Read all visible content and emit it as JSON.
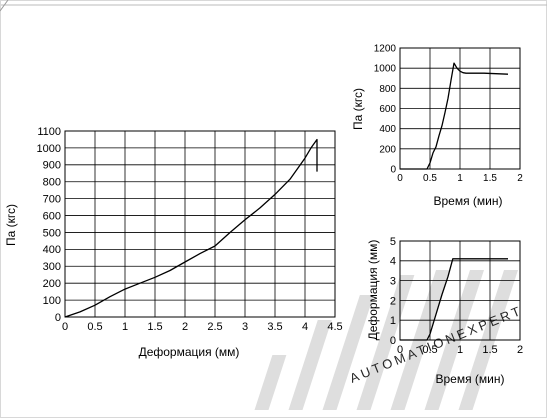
{
  "chart_data": [
    {
      "type": "line",
      "xlabel": "Деформация (мм)",
      "ylabel": "Па (кгс)",
      "xlim": [
        0,
        4.5
      ],
      "ylim": [
        0,
        1100
      ],
      "xticks": [
        "0",
        "0.5",
        "1",
        "1.5",
        "2",
        "2.5",
        "3",
        "3.5",
        "4",
        "4.5"
      ],
      "yticks": [
        "0",
        "100",
        "200",
        "300",
        "400",
        "500",
        "600",
        "700",
        "800",
        "900",
        "1000",
        "1100"
      ],
      "grid": true,
      "series": [
        {
          "x": [
            0,
            0.25,
            0.5,
            0.75,
            1.0,
            1.25,
            1.5,
            1.75,
            2.0,
            2.25,
            2.5,
            2.75,
            3.0,
            3.25,
            3.5,
            3.75,
            4.0,
            4.1,
            4.2,
            4.2
          ],
          "y": [
            0,
            30,
            70,
            120,
            165,
            200,
            235,
            275,
            325,
            375,
            420,
            500,
            575,
            645,
            725,
            815,
            940,
            1000,
            1050,
            860
          ]
        }
      ]
    },
    {
      "type": "line",
      "xlabel": "Время (мин)",
      "ylabel": "Па (кгс)",
      "xlim": [
        0,
        2
      ],
      "ylim": [
        0,
        1200
      ],
      "xticks": [
        "0",
        "0.5",
        "1",
        "1.5",
        "2"
      ],
      "yticks": [
        "0",
        "200",
        "400",
        "600",
        "800",
        "1000",
        "1200"
      ],
      "grid": true,
      "series": [
        {
          "x": [
            0,
            0.45,
            0.5,
            0.55,
            0.6,
            0.65,
            0.7,
            0.75,
            0.8,
            0.85,
            0.9,
            0.95,
            1.0,
            1.05,
            1.1,
            1.2,
            1.4,
            1.6,
            1.8
          ],
          "y": [
            0,
            0,
            60,
            160,
            220,
            330,
            430,
            560,
            700,
            880,
            1050,
            1000,
            970,
            955,
            950,
            950,
            950,
            945,
            940
          ]
        }
      ]
    },
    {
      "type": "line",
      "xlabel": "Время (мин)",
      "ylabel": "Деформация (мм)",
      "xlim": [
        0,
        2
      ],
      "ylim": [
        0,
        5
      ],
      "xticks": [
        "0",
        "0.5",
        "1",
        "1.5",
        "2"
      ],
      "yticks": [
        "0",
        "1",
        "2",
        "3",
        "4",
        "5"
      ],
      "grid": true,
      "series": [
        {
          "x": [
            0,
            0.45,
            0.5,
            0.6,
            0.7,
            0.8,
            0.88,
            0.92,
            1.2,
            1.5,
            1.8
          ],
          "y": [
            0,
            0,
            0.3,
            1.3,
            2.3,
            3.2,
            4.1,
            4.1,
            4.1,
            4.1,
            4.1
          ]
        }
      ]
    }
  ],
  "watermark": {
    "text": "AUTOMATIONEXPERT",
    "color": "#d0d0d0"
  },
  "colors": {
    "line": "#000000",
    "grid": "#000000",
    "background": "#ffffff"
  }
}
